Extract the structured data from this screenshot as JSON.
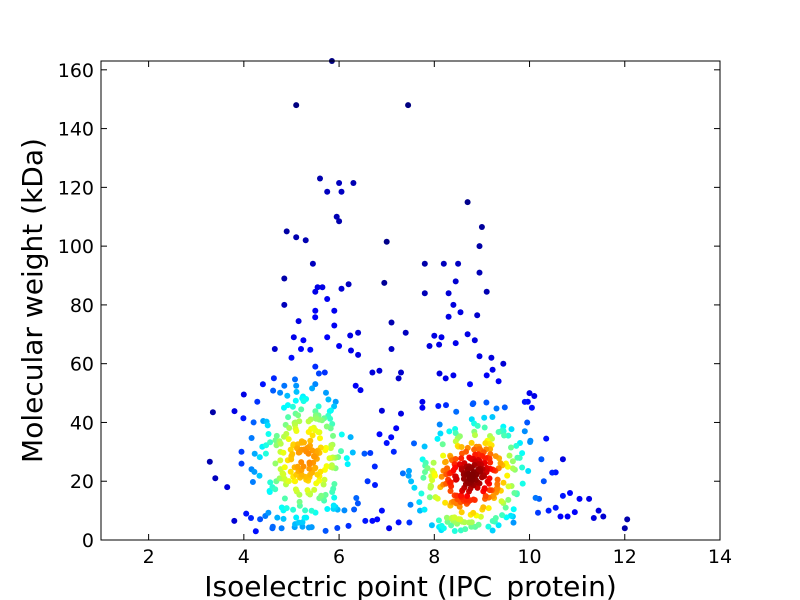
{
  "chart_data": {
    "type": "scatter",
    "title": "",
    "xlabel": "Isoelectric point (IPC_protein)",
    "ylabel": "Molecular weight (kDa)",
    "xlim": [
      1,
      14
    ],
    "ylim": [
      0,
      163
    ],
    "xticks": [
      2,
      4,
      6,
      8,
      10,
      12,
      14
    ],
    "yticks": [
      0,
      20,
      40,
      60,
      80,
      100,
      120,
      140,
      160
    ],
    "grid": false,
    "legend": "none",
    "colormap": "jet (point density)",
    "colors": {
      "low_density": "#0000a8",
      "high_density": "#7f0000"
    },
    "clusters": [
      {
        "x_center": 5.3,
        "y_center": 27,
        "x_spread": 0.55,
        "y_spread": 13,
        "count": 260
      },
      {
        "x_center": 8.75,
        "y_center": 22,
        "x_spread": 0.55,
        "y_spread": 12,
        "count": 320
      }
    ],
    "points": [
      [
        5.85,
        163
      ],
      [
        5.1,
        148
      ],
      [
        7.45,
        148
      ],
      [
        5.6,
        123
      ],
      [
        6.0,
        121.5
      ],
      [
        6.3,
        121.5
      ],
      [
        5.75,
        118.5
      ],
      [
        6.05,
        118.5
      ],
      [
        5.95,
        110
      ],
      [
        6.0,
        108.5
      ],
      [
        8.7,
        115
      ],
      [
        9.0,
        106.5
      ],
      [
        8.95,
        100
      ],
      [
        4.9,
        105
      ],
      [
        5.1,
        103
      ],
      [
        5.3,
        102
      ],
      [
        7.0,
        101.5
      ],
      [
        5.45,
        94
      ],
      [
        7.8,
        94
      ],
      [
        8.2,
        94
      ],
      [
        8.5,
        94
      ],
      [
        8.95,
        91
      ],
      [
        4.85,
        89
      ],
      [
        8.45,
        88
      ],
      [
        6.95,
        87.5
      ],
      [
        5.55,
        86
      ],
      [
        5.65,
        86
      ],
      [
        5.5,
        84.5
      ],
      [
        6.05,
        85.5
      ],
      [
        6.2,
        87
      ],
      [
        9.1,
        84.5
      ],
      [
        8.3,
        84
      ],
      [
        7.8,
        84
      ],
      [
        5.75,
        82
      ],
      [
        4.85,
        80
      ],
      [
        8.4,
        80
      ],
      [
        5.5,
        78
      ],
      [
        5.9,
        78
      ],
      [
        8.3,
        76
      ],
      [
        8.55,
        77.5
      ],
      [
        8.9,
        76.5
      ],
      [
        7.1,
        74
      ],
      [
        5.15,
        74.5
      ],
      [
        5.9,
        73
      ],
      [
        6.4,
        70.5
      ],
      [
        7.4,
        70.5
      ],
      [
        8.0,
        69.5
      ],
      [
        8.15,
        69
      ],
      [
        8.7,
        70
      ],
      [
        8.85,
        68
      ],
      [
        5.05,
        69
      ],
      [
        5.25,
        68
      ],
      [
        5.75,
        69
      ],
      [
        4.65,
        65
      ],
      [
        5.2,
        65
      ],
      [
        6.0,
        66
      ],
      [
        6.25,
        64.5
      ],
      [
        6.4,
        63
      ],
      [
        7.1,
        65
      ],
      [
        7.9,
        66
      ],
      [
        8.1,
        66.5
      ],
      [
        8.45,
        67
      ],
      [
        8.95,
        62.5
      ],
      [
        9.2,
        62
      ],
      [
        5.0,
        62
      ],
      [
        5.5,
        59
      ],
      [
        5.7,
        57
      ],
      [
        6.7,
        57
      ],
      [
        7.3,
        57
      ],
      [
        7.25,
        55
      ],
      [
        9.45,
        60
      ],
      [
        9.1,
        56
      ],
      [
        8.4,
        56
      ],
      [
        4.4,
        53
      ],
      [
        4.85,
        52.5
      ],
      [
        5.1,
        52.5
      ],
      [
        6.35,
        52.5
      ],
      [
        6.45,
        51
      ],
      [
        8.75,
        53
      ],
      [
        9.35,
        54
      ],
      [
        4.0,
        49.5
      ],
      [
        9.9,
        47
      ],
      [
        10.0,
        50
      ],
      [
        10.1,
        49
      ],
      [
        10.05,
        45
      ],
      [
        7.75,
        47
      ],
      [
        7.75,
        45
      ],
      [
        9.9,
        37
      ],
      [
        9.95,
        40
      ],
      [
        9.8,
        33
      ],
      [
        10.25,
        27.5
      ],
      [
        10.35,
        34.5
      ],
      [
        10.55,
        23
      ],
      [
        10.7,
        27.5
      ],
      [
        10.7,
        15
      ],
      [
        10.85,
        16
      ],
      [
        10.95,
        9.5
      ],
      [
        10.55,
        11
      ],
      [
        10.65,
        8
      ],
      [
        10.8,
        8
      ],
      [
        11.05,
        14
      ],
      [
        11.25,
        14
      ],
      [
        11.35,
        7.5
      ],
      [
        11.45,
        10
      ],
      [
        11.55,
        8
      ],
      [
        12.0,
        4
      ],
      [
        12.05,
        7
      ],
      [
        3.35,
        43.5
      ],
      [
        3.4,
        21
      ],
      [
        3.65,
        18
      ],
      [
        3.95,
        30
      ],
      [
        3.95,
        26
      ],
      [
        3.8,
        6.5
      ],
      [
        4.05,
        9
      ],
      [
        4.15,
        7.5
      ],
      [
        4.25,
        3
      ],
      [
        4.6,
        4
      ],
      [
        4.5,
        39
      ],
      [
        10.2,
        14
      ],
      [
        10.3,
        20
      ],
      [
        10.4,
        10
      ],
      [
        6.8,
        7
      ],
      [
        6.9,
        10
      ],
      [
        7.25,
        6
      ],
      [
        7.05,
        4
      ],
      [
        6.55,
        6.5
      ],
      [
        6.7,
        6.5
      ],
      [
        7.5,
        12
      ],
      [
        7.7,
        10
      ],
      [
        7.95,
        5
      ],
      [
        8.2,
        4
      ],
      [
        9.35,
        5
      ],
      [
        9.65,
        8
      ],
      [
        6.6,
        20
      ],
      [
        6.75,
        25
      ],
      [
        7.0,
        33
      ],
      [
        7.2,
        38
      ],
      [
        6.9,
        44
      ],
      [
        7.3,
        43
      ],
      [
        7.15,
        30
      ],
      [
        6.85,
        36
      ]
    ]
  }
}
